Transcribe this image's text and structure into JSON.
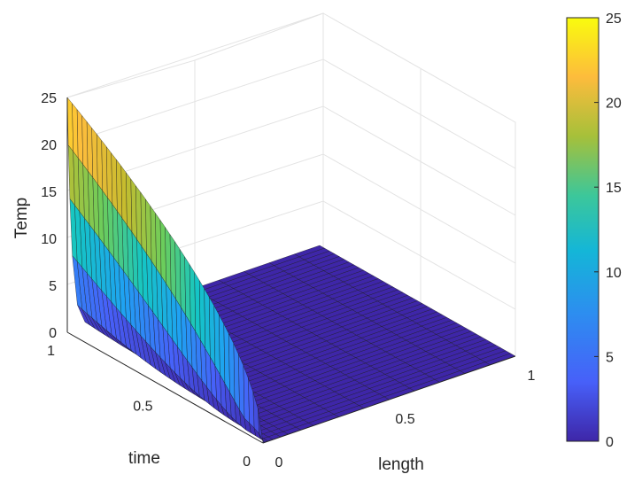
{
  "chart_data": {
    "type": "surface",
    "title": "",
    "xlabel": "length",
    "ylabel": "time",
    "zlabel": "Temp",
    "xlim": [
      0,
      1
    ],
    "ylim": [
      0,
      1
    ],
    "zlim": [
      0,
      25
    ],
    "x_ticks": [
      "0",
      "0.5",
      "1"
    ],
    "y_ticks": [
      "0",
      "0.5",
      "1"
    ],
    "z_ticks": [
      "0",
      "5",
      "10",
      "15",
      "20",
      "25"
    ],
    "grid": true,
    "colormap": "parula",
    "colorbar": {
      "limits": [
        0,
        25
      ],
      "ticks": [
        "0",
        "5",
        "10",
        "15",
        "20",
        "25"
      ]
    },
    "surface_description": {
      "at_length_0": "Temp decreases from 25 at time 1 to about 0 at time 0",
      "length_gt_0": "near 0 everywhere except small values close to length 0 at early time"
    },
    "series": [
      {
        "x": 0.0,
        "time": [
          0,
          0.25,
          0.5,
          0.75,
          1
        ],
        "temp": [
          0,
          14,
          20,
          23,
          25
        ]
      },
      {
        "x": 0.01,
        "time": [
          0,
          0.25,
          0.5,
          0.75,
          1
        ],
        "temp": [
          0,
          5,
          8,
          11,
          13
        ]
      }
    ]
  },
  "colors": {
    "colormap_stops": [
      "#3e26a8",
      "#4760f9",
      "#1fa2f2",
      "#14c6c4",
      "#6bcd5c",
      "#c6bc2e",
      "#fdbd3c",
      "#f9fb0e"
    ],
    "edge": "#1a1a1a"
  }
}
